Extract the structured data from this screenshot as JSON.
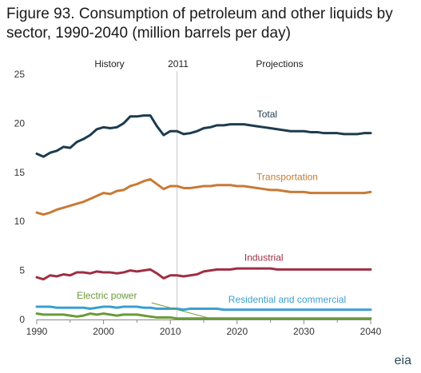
{
  "chart_data": {
    "type": "line",
    "title": "Figure 93. Consumption of petroleum and other liquids by sector, 1990-2040 (million barrels per day)",
    "xlim": [
      1990,
      2040
    ],
    "ylim": [
      0,
      25
    ],
    "x_ticks": [
      "1990",
      "2000",
      "2010",
      "2020",
      "2030",
      "2040"
    ],
    "y_ticks": [
      "0",
      "5",
      "10",
      "15",
      "20",
      "25"
    ],
    "annotations": {
      "history": "History",
      "year": "2011",
      "projections": "Projections"
    },
    "divider_year": 2011,
    "series": [
      {
        "name": "Total",
        "color": "#1d3b4f",
        "label_pos": [
          2024.5,
          20.6
        ],
        "points": [
          [
            1990,
            16.9
          ],
          [
            1991,
            16.6
          ],
          [
            1992,
            17.0
          ],
          [
            1993,
            17.2
          ],
          [
            1994,
            17.6
          ],
          [
            1995,
            17.5
          ],
          [
            1996,
            18.1
          ],
          [
            1997,
            18.4
          ],
          [
            1998,
            18.8
          ],
          [
            1999,
            19.4
          ],
          [
            2000,
            19.6
          ],
          [
            2001,
            19.5
          ],
          [
            2002,
            19.6
          ],
          [
            2003,
            20.0
          ],
          [
            2004,
            20.7
          ],
          [
            2005,
            20.7
          ],
          [
            2006,
            20.8
          ],
          [
            2007,
            20.8
          ],
          [
            2008,
            19.7
          ],
          [
            2009,
            18.8
          ],
          [
            2010,
            19.2
          ],
          [
            2011,
            19.2
          ],
          [
            2012,
            18.9
          ],
          [
            2013,
            19.0
          ],
          [
            2014,
            19.2
          ],
          [
            2015,
            19.5
          ],
          [
            2016,
            19.6
          ],
          [
            2017,
            19.8
          ],
          [
            2018,
            19.8
          ],
          [
            2019,
            19.9
          ],
          [
            2020,
            19.9
          ],
          [
            2021,
            19.9
          ],
          [
            2022,
            19.8
          ],
          [
            2023,
            19.7
          ],
          [
            2024,
            19.6
          ],
          [
            2025,
            19.5
          ],
          [
            2026,
            19.4
          ],
          [
            2027,
            19.3
          ],
          [
            2028,
            19.2
          ],
          [
            2029,
            19.2
          ],
          [
            2030,
            19.2
          ],
          [
            2031,
            19.1
          ],
          [
            2032,
            19.1
          ],
          [
            2033,
            19.0
          ],
          [
            2034,
            19.0
          ],
          [
            2035,
            19.0
          ],
          [
            2036,
            18.9
          ],
          [
            2037,
            18.9
          ],
          [
            2038,
            18.9
          ],
          [
            2039,
            19.0
          ],
          [
            2040,
            19.0
          ]
        ]
      },
      {
        "name": "Transportation",
        "color": "#c87a35",
        "label_pos": [
          2027.5,
          14.2
        ],
        "points": [
          [
            1990,
            10.9
          ],
          [
            1991,
            10.7
          ],
          [
            1992,
            10.9
          ],
          [
            1993,
            11.2
          ],
          [
            1994,
            11.4
          ],
          [
            1995,
            11.6
          ],
          [
            1996,
            11.8
          ],
          [
            1997,
            12.0
          ],
          [
            1998,
            12.3
          ],
          [
            1999,
            12.6
          ],
          [
            2000,
            12.9
          ],
          [
            2001,
            12.8
          ],
          [
            2002,
            13.1
          ],
          [
            2003,
            13.2
          ],
          [
            2004,
            13.6
          ],
          [
            2005,
            13.8
          ],
          [
            2006,
            14.1
          ],
          [
            2007,
            14.3
          ],
          [
            2008,
            13.8
          ],
          [
            2009,
            13.3
          ],
          [
            2010,
            13.6
          ],
          [
            2011,
            13.6
          ],
          [
            2012,
            13.4
          ],
          [
            2013,
            13.4
          ],
          [
            2014,
            13.5
          ],
          [
            2015,
            13.6
          ],
          [
            2016,
            13.6
          ],
          [
            2017,
            13.7
          ],
          [
            2018,
            13.7
          ],
          [
            2019,
            13.7
          ],
          [
            2020,
            13.6
          ],
          [
            2021,
            13.6
          ],
          [
            2022,
            13.5
          ],
          [
            2023,
            13.4
          ],
          [
            2024,
            13.3
          ],
          [
            2025,
            13.2
          ],
          [
            2026,
            13.2
          ],
          [
            2027,
            13.1
          ],
          [
            2028,
            13.0
          ],
          [
            2029,
            13.0
          ],
          [
            2030,
            13.0
          ],
          [
            2031,
            12.9
          ],
          [
            2032,
            12.9
          ],
          [
            2033,
            12.9
          ],
          [
            2034,
            12.9
          ],
          [
            2035,
            12.9
          ],
          [
            2036,
            12.9
          ],
          [
            2037,
            12.9
          ],
          [
            2038,
            12.9
          ],
          [
            2039,
            12.9
          ],
          [
            2040,
            13.0
          ]
        ]
      },
      {
        "name": "Industrial",
        "color": "#a02e43",
        "label_pos": [
          2024,
          6.0
        ],
        "points": [
          [
            1990,
            4.3
          ],
          [
            1991,
            4.1
          ],
          [
            1992,
            4.5
          ],
          [
            1993,
            4.4
          ],
          [
            1994,
            4.6
          ],
          [
            1995,
            4.5
          ],
          [
            1996,
            4.8
          ],
          [
            1997,
            4.8
          ],
          [
            1998,
            4.7
          ],
          [
            1999,
            4.9
          ],
          [
            2000,
            4.8
          ],
          [
            2001,
            4.8
          ],
          [
            2002,
            4.7
          ],
          [
            2003,
            4.8
          ],
          [
            2004,
            5.0
          ],
          [
            2005,
            4.9
          ],
          [
            2006,
            5.0
          ],
          [
            2007,
            5.1
          ],
          [
            2008,
            4.7
          ],
          [
            2009,
            4.2
          ],
          [
            2010,
            4.5
          ],
          [
            2011,
            4.5
          ],
          [
            2012,
            4.4
          ],
          [
            2013,
            4.5
          ],
          [
            2014,
            4.6
          ],
          [
            2015,
            4.9
          ],
          [
            2016,
            5.0
          ],
          [
            2017,
            5.1
          ],
          [
            2018,
            5.1
          ],
          [
            2019,
            5.1
          ],
          [
            2020,
            5.2
          ],
          [
            2021,
            5.2
          ],
          [
            2022,
            5.2
          ],
          [
            2023,
            5.2
          ],
          [
            2024,
            5.2
          ],
          [
            2025,
            5.2
          ],
          [
            2026,
            5.1
          ],
          [
            2027,
            5.1
          ],
          [
            2028,
            5.1
          ],
          [
            2029,
            5.1
          ],
          [
            2030,
            5.1
          ],
          [
            2031,
            5.1
          ],
          [
            2032,
            5.1
          ],
          [
            2033,
            5.1
          ],
          [
            2034,
            5.1
          ],
          [
            2035,
            5.1
          ],
          [
            2036,
            5.1
          ],
          [
            2037,
            5.1
          ],
          [
            2038,
            5.1
          ],
          [
            2039,
            5.1
          ],
          [
            2040,
            5.1
          ]
        ]
      },
      {
        "name": "Residential and commercial",
        "color": "#3a9fd2",
        "label_pos": [
          2027.5,
          1.7
        ],
        "points": [
          [
            1990,
            1.3
          ],
          [
            1991,
            1.3
          ],
          [
            1992,
            1.3
          ],
          [
            1993,
            1.2
          ],
          [
            1994,
            1.2
          ],
          [
            1995,
            1.2
          ],
          [
            1996,
            1.2
          ],
          [
            1997,
            1.2
          ],
          [
            1998,
            1.1
          ],
          [
            1999,
            1.2
          ],
          [
            2000,
            1.3
          ],
          [
            2001,
            1.3
          ],
          [
            2002,
            1.2
          ],
          [
            2003,
            1.3
          ],
          [
            2004,
            1.3
          ],
          [
            2005,
            1.3
          ],
          [
            2006,
            1.2
          ],
          [
            2007,
            1.2
          ],
          [
            2008,
            1.1
          ],
          [
            2009,
            1.1
          ],
          [
            2010,
            1.1
          ],
          [
            2011,
            1.1
          ],
          [
            2012,
            1.0
          ],
          [
            2013,
            1.1
          ],
          [
            2014,
            1.1
          ],
          [
            2015,
            1.1
          ],
          [
            2016,
            1.1
          ],
          [
            2017,
            1.1
          ],
          [
            2018,
            1.0
          ],
          [
            2019,
            1.0
          ],
          [
            2020,
            1.0
          ],
          [
            2021,
            1.0
          ],
          [
            2022,
            1.0
          ],
          [
            2023,
            1.0
          ],
          [
            2024,
            1.0
          ],
          [
            2025,
            1.0
          ],
          [
            2026,
            1.0
          ],
          [
            2027,
            1.0
          ],
          [
            2028,
            1.0
          ],
          [
            2029,
            1.0
          ],
          [
            2030,
            1.0
          ],
          [
            2031,
            1.0
          ],
          [
            2032,
            1.0
          ],
          [
            2033,
            1.0
          ],
          [
            2034,
            1.0
          ],
          [
            2035,
            1.0
          ],
          [
            2036,
            1.0
          ],
          [
            2037,
            1.0
          ],
          [
            2038,
            1.0
          ],
          [
            2039,
            1.0
          ],
          [
            2040,
            1.0
          ]
        ]
      },
      {
        "name": "Electric power",
        "color": "#6a9a3a",
        "label_pos": [
          2000.5,
          2.1
        ],
        "points": [
          [
            1990,
            0.6
          ],
          [
            1991,
            0.5
          ],
          [
            1992,
            0.5
          ],
          [
            1993,
            0.5
          ],
          [
            1994,
            0.5
          ],
          [
            1995,
            0.4
          ],
          [
            1996,
            0.3
          ],
          [
            1997,
            0.4
          ],
          [
            1998,
            0.6
          ],
          [
            1999,
            0.5
          ],
          [
            2000,
            0.6
          ],
          [
            2001,
            0.5
          ],
          [
            2002,
            0.4
          ],
          [
            2003,
            0.5
          ],
          [
            2004,
            0.5
          ],
          [
            2005,
            0.5
          ],
          [
            2006,
            0.4
          ],
          [
            2007,
            0.3
          ],
          [
            2008,
            0.2
          ],
          [
            2009,
            0.2
          ],
          [
            2010,
            0.2
          ],
          [
            2011,
            0.1
          ],
          [
            2012,
            0.1
          ],
          [
            2013,
            0.1
          ],
          [
            2014,
            0.1
          ],
          [
            2015,
            0.1
          ],
          [
            2016,
            0.1
          ],
          [
            2017,
            0.1
          ],
          [
            2018,
            0.1
          ],
          [
            2019,
            0.1
          ],
          [
            2020,
            0.1
          ],
          [
            2021,
            0.1
          ],
          [
            2022,
            0.1
          ],
          [
            2023,
            0.1
          ],
          [
            2024,
            0.1
          ],
          [
            2025,
            0.1
          ],
          [
            2026,
            0.1
          ],
          [
            2027,
            0.1
          ],
          [
            2028,
            0.1
          ],
          [
            2029,
            0.1
          ],
          [
            2030,
            0.1
          ],
          [
            2031,
            0.1
          ],
          [
            2032,
            0.1
          ],
          [
            2033,
            0.1
          ],
          [
            2034,
            0.1
          ],
          [
            2035,
            0.1
          ],
          [
            2036,
            0.1
          ],
          [
            2037,
            0.1
          ],
          [
            2038,
            0.1
          ],
          [
            2039,
            0.1
          ],
          [
            2040,
            0.1
          ]
        ]
      }
    ],
    "leaders": [
      {
        "series": "Electric power",
        "from": [
          2007.2,
          1.7
        ],
        "to": [
          2016.0,
          0.1
        ]
      }
    ],
    "grid": false
  },
  "logo": {
    "text": "eia"
  }
}
